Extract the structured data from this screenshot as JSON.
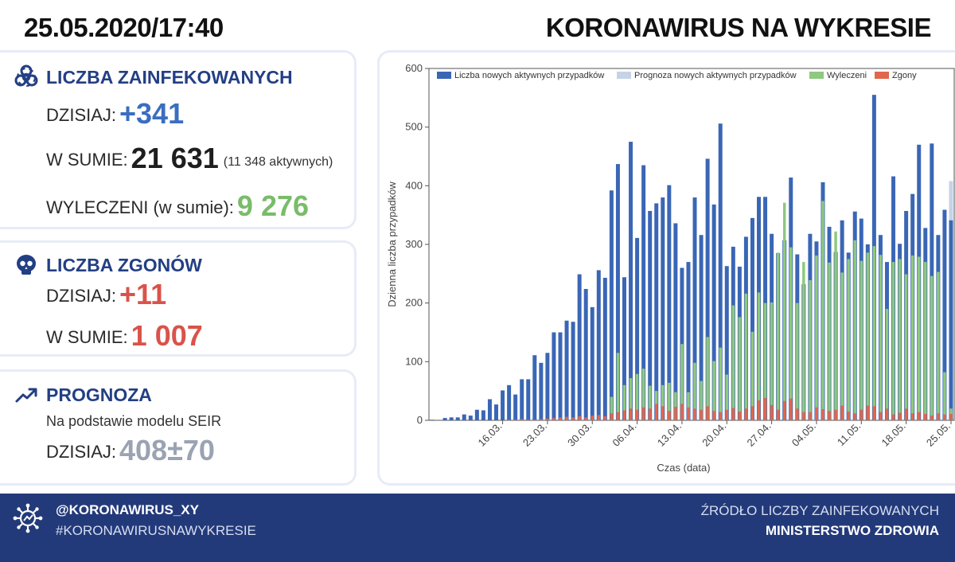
{
  "header": {
    "date": "25.05.2020/17:40",
    "title": "KORONAWIRUS NA WYKRESIE"
  },
  "infected": {
    "title": "LICZBA ZAINFEKOWANYCH",
    "today_label": "DZISIAJ:",
    "today_value": "+341",
    "total_label": "W SUMIE:",
    "total_value": "21 631",
    "active_note": "(11 348 aktywnych)",
    "recovered_label": "WYLECZENI (w sumie):",
    "recovered_value": "9 276",
    "icon": "biohazard-icon"
  },
  "deaths": {
    "title": "LICZBA ZGONÓW",
    "today_label": "DZISIAJ:",
    "today_value": "+11",
    "total_label": "W SUMIE:",
    "total_value": "1 007",
    "icon": "skull-icon"
  },
  "forecast": {
    "title": "PROGNOZA",
    "note": "Na podstawie modelu SEIR",
    "today_label": "DZISIAJ:",
    "today_value": "408±70",
    "icon": "trend-up-icon"
  },
  "footer": {
    "handle": "@KORONAWIRUS_XY",
    "hashtag": "#KORONAWIRUSNAWYKRESIE",
    "source_line1": "ŹRÓDŁO LICZBY ZAINFEKOWANYCH",
    "source_line2": "MINISTERSTWO ZDROWIA",
    "icon": "virus-icon"
  },
  "colors": {
    "new_active": "#3a66b5",
    "forecast": "#c5d3e6",
    "recovered": "#8fc87f",
    "deaths": "#e0664e",
    "title_blue": "#233f84",
    "footer_bg": "#233a7a"
  },
  "chart_data": {
    "type": "bar",
    "xlabel": "Czas (data)",
    "ylabel": "Dzienna liczba przypadków",
    "ylim": [
      0,
      600
    ],
    "yticks": [
      0,
      100,
      200,
      300,
      400,
      500,
      600
    ],
    "legend_position": "top",
    "x_tick_labels": [
      "16.03.",
      "23.03.",
      "30.03.",
      "06.04.",
      "13.04.",
      "20.04.",
      "27.04.",
      "04.05.",
      "11.05.",
      "18.05.",
      "25.05."
    ],
    "x_tick_days": [
      11,
      18,
      25,
      32,
      39,
      46,
      53,
      60,
      67,
      74,
      81
    ],
    "days_from": "05.03.",
    "days_to": "25.05.",
    "series": [
      {
        "name": "Liczba nowych aktywnych przypadków",
        "values": [
          1,
          0,
          4,
          5,
          5,
          10,
          8,
          18,
          17,
          36,
          27,
          51,
          60,
          44,
          70,
          70,
          111,
          98,
          115,
          150,
          150,
          170,
          168,
          249,
          224,
          193,
          256,
          243,
          392,
          437,
          244,
          475,
          311,
          435,
          357,
          370,
          380,
          401,
          336,
          260,
          270,
          380,
          316,
          446,
          368,
          506,
          263,
          296,
          262,
          313,
          345,
          381,
          381,
          318,
          285,
          307,
          414,
          283,
          232,
          318,
          305,
          406,
          330,
          287,
          341,
          286,
          356,
          344,
          300,
          555,
          316,
          270,
          416,
          301,
          357,
          386,
          470,
          328,
          472,
          316,
          359,
          341
        ]
      },
      {
        "name": "Prognoza nowych aktywnych przypadków",
        "values": [
          null,
          null,
          null,
          null,
          null,
          null,
          null,
          null,
          null,
          null,
          null,
          null,
          null,
          null,
          null,
          null,
          null,
          null,
          null,
          null,
          null,
          null,
          null,
          null,
          null,
          null,
          null,
          null,
          null,
          null,
          null,
          null,
          null,
          null,
          null,
          null,
          null,
          null,
          null,
          null,
          null,
          null,
          null,
          null,
          null,
          null,
          null,
          null,
          null,
          null,
          null,
          null,
          null,
          null,
          null,
          null,
          null,
          null,
          null,
          null,
          null,
          null,
          null,
          null,
          null,
          null,
          null,
          null,
          null,
          null,
          null,
          null,
          null,
          null,
          null,
          null,
          null,
          null,
          null,
          null,
          null,
          408
        ]
      },
      {
        "name": "Wyleczeni",
        "values": [
          0,
          0,
          0,
          0,
          0,
          0,
          0,
          0,
          0,
          0,
          0,
          0,
          0,
          0,
          0,
          0,
          0,
          0,
          0,
          0,
          0,
          0,
          0,
          0,
          0,
          0,
          0,
          0,
          40,
          115,
          60,
          72,
          79,
          88,
          59,
          50,
          60,
          64,
          48,
          130,
          48,
          98,
          67,
          142,
          101,
          124,
          78,
          196,
          176,
          216,
          151,
          218,
          200,
          201,
          286,
          371,
          295,
          200,
          270,
          239,
          281,
          374,
          269,
          322,
          252,
          275,
          307,
          272,
          286,
          297,
          282,
          190,
          270,
          275,
          249,
          281,
          279,
          270,
          246,
          253,
          82,
          20
        ]
      },
      {
        "name": "Zgony",
        "values": [
          0,
          0,
          0,
          0,
          0,
          0,
          0,
          0,
          0,
          0,
          0,
          0,
          1,
          1,
          2,
          1,
          1,
          2,
          3,
          4,
          5,
          6,
          5,
          7,
          5,
          8,
          9,
          7,
          12,
          14,
          17,
          20,
          18,
          22,
          20,
          28,
          24,
          16,
          23,
          28,
          22,
          20,
          18,
          24,
          16,
          14,
          18,
          21,
          15,
          20,
          24,
          34,
          38,
          26,
          18,
          33,
          37,
          20,
          14,
          14,
          22,
          19,
          16,
          18,
          25,
          15,
          12,
          18,
          25,
          24,
          14,
          20,
          10,
          13,
          20,
          12,
          14,
          11,
          8,
          12,
          10,
          11
        ]
      }
    ]
  }
}
